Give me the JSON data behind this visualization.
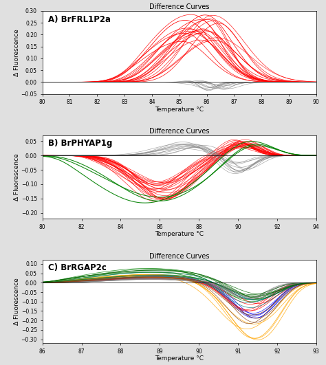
{
  "title": "Difference Curves",
  "xlabel": "Temperature °C",
  "ylabel": "Δ Fluorescence",
  "panels": [
    {
      "label": "A) BrFRL1P2a",
      "xlim": [
        80,
        90
      ],
      "ylim": [
        -0.05,
        0.3
      ],
      "yticks": [
        -0.05,
        0.0,
        0.05,
        0.1,
        0.15,
        0.2,
        0.25,
        0.3
      ],
      "xticks": [
        80,
        81,
        82,
        83,
        84,
        85,
        86,
        87,
        88,
        89,
        90
      ]
    },
    {
      "label": "B) BrPHYAP1g",
      "xlim": [
        80,
        94
      ],
      "ylim": [
        -0.22,
        0.07
      ],
      "yticks": [
        -0.2,
        -0.15,
        -0.1,
        -0.05,
        0.0,
        0.05
      ],
      "xticks": [
        80,
        82,
        84,
        86,
        88,
        90,
        92,
        94
      ]
    },
    {
      "label": "C) BrRGAP2c",
      "xlim": [
        86,
        93
      ],
      "ylim": [
        -0.32,
        0.12
      ],
      "yticks": [
        -0.3,
        -0.25,
        -0.2,
        -0.15,
        -0.1,
        -0.05,
        0.0,
        0.05,
        0.1
      ],
      "xticks": [
        86,
        87,
        88,
        89,
        90,
        91,
        92,
        93
      ]
    }
  ],
  "bg_color": "#e0e0e0",
  "plot_bg": "#ffffff",
  "title_fontsize": 7,
  "label_fontsize": 6.5,
  "tick_fontsize": 5.5
}
